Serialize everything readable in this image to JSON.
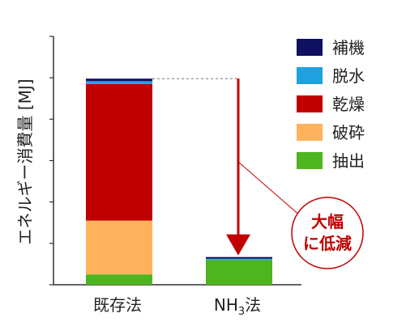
{
  "chart_data": {
    "type": "bar",
    "stacked": true,
    "categories": [
      "既存法",
      "NH3法"
    ],
    "category_parts": {
      "nh3": {
        "main": "NH",
        "sub": "3",
        "tail": "法"
      }
    },
    "ylabel": "エネルギー消費量 [MJ]",
    "ylim": [
      0,
      6
    ],
    "yticks": [
      0,
      1,
      2,
      3,
      4,
      5,
      6
    ],
    "tick_labels_shown": false,
    "grid": false,
    "legend_position": "right",
    "series": [
      {
        "name": "抽出",
        "color": "#4cb51f",
        "values": [
          0.25,
          0.6
        ]
      },
      {
        "name": "破砕",
        "color": "#ffb25c",
        "values": [
          1.3,
          0.0
        ]
      },
      {
        "name": "乾燥",
        "color": "#c00000",
        "values": [
          3.3,
          0.0
        ]
      },
      {
        "name": "脱水",
        "color": "#1fa1e0",
        "values": [
          0.07,
          0.03
        ]
      },
      {
        "name": "補機",
        "color": "#101060",
        "values": [
          0.06,
          0.04
        ]
      }
    ],
    "legend_order": [
      "補機",
      "脱水",
      "乾燥",
      "破砕",
      "抽出"
    ],
    "annotation": {
      "lines": [
        "大幅",
        "に低減"
      ],
      "color": "#c00000"
    }
  }
}
